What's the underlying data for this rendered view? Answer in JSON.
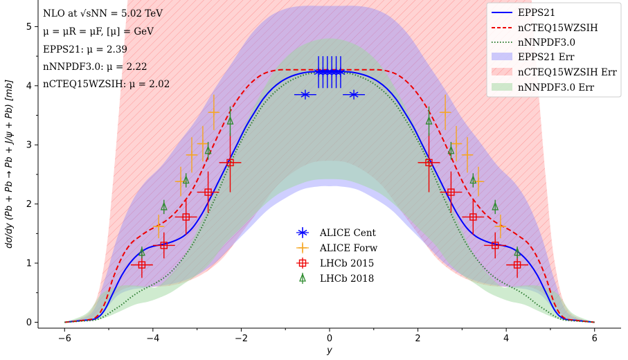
{
  "chart_data": {
    "type": "line",
    "xlabel": "y",
    "ylabel": "dσ/dy (Pb + Pb → Pb + J/ψ + Pb) [mb]",
    "xlim": [
      -6.6,
      6.6
    ],
    "ylim": [
      -0.1,
      5.45
    ],
    "xticks": [
      -6,
      -4,
      -2,
      0,
      2,
      4,
      6
    ],
    "xtick_labels": [
      "−6",
      "−4",
      "−2",
      "0",
      "2",
      "4",
      "6"
    ],
    "yticks": [
      0,
      1,
      2,
      3,
      4,
      5
    ],
    "ytick_labels": [
      "0",
      "1",
      "2",
      "3",
      "4",
      "5"
    ],
    "annotations": [
      "NLO at √sNN = 5.02 TeV",
      "μ = μR = μF, [μ] = GeV",
      "EPPS21: μ = 2.39",
      "nNNPDF3.0: μ = 2.22",
      "nCTEQ15WZSIH: μ = 2.02"
    ],
    "legend_position": "top-right",
    "series": [
      {
        "name": "EPPS21",
        "style": "solid",
        "color": "#0000ff",
        "x": [
          -6.0,
          -5.6,
          -5.3,
          -5.1,
          -4.9,
          -4.7,
          -4.5,
          -4.3,
          -4.1,
          -3.9,
          -3.7,
          -3.5,
          -3.3,
          -3.1,
          -2.9,
          -2.7,
          -2.5,
          -2.3,
          -2.1,
          -1.9,
          -1.7,
          -1.5,
          -1.3,
          -1.1,
          -0.9,
          -0.7,
          -0.5,
          -0.3,
          -0.1,
          0.0
        ],
        "y": [
          0.0,
          0.03,
          0.06,
          0.2,
          0.5,
          0.8,
          1.02,
          1.17,
          1.26,
          1.3,
          1.33,
          1.38,
          1.46,
          1.6,
          1.82,
          2.1,
          2.4,
          2.7,
          3.0,
          3.3,
          3.55,
          3.78,
          3.95,
          4.07,
          4.15,
          4.2,
          4.23,
          4.24,
          4.25,
          4.25
        ]
      },
      {
        "name": "nCTEQ15WZSIH",
        "style": "dashed",
        "color": "#ee0000",
        "x": [
          -6.0,
          -5.6,
          -5.3,
          -5.1,
          -4.9,
          -4.7,
          -4.5,
          -4.3,
          -4.1,
          -3.9,
          -3.7,
          -3.5,
          -3.3,
          -3.1,
          -2.9,
          -2.7,
          -2.5,
          -2.3,
          -2.1,
          -1.9,
          -1.7,
          -1.5,
          -1.3,
          -1.1,
          -0.9,
          -0.7,
          -0.5,
          -0.3,
          -0.1,
          0.0
        ],
        "y": [
          0.0,
          0.03,
          0.08,
          0.3,
          0.75,
          1.1,
          1.33,
          1.45,
          1.55,
          1.63,
          1.72,
          1.85,
          2.03,
          2.25,
          2.55,
          2.88,
          3.2,
          3.5,
          3.75,
          3.95,
          4.1,
          4.2,
          4.25,
          4.27,
          4.27,
          4.27,
          4.27,
          4.27,
          4.27,
          4.27
        ]
      },
      {
        "name": "nNNPDF3.0",
        "style": "dotted",
        "color": "#2e7d32",
        "x": [
          -6.0,
          -5.6,
          -5.3,
          -5.1,
          -4.9,
          -4.7,
          -4.5,
          -4.3,
          -4.1,
          -3.9,
          -3.7,
          -3.5,
          -3.3,
          -3.1,
          -2.9,
          -2.7,
          -2.5,
          -2.3,
          -2.1,
          -1.9,
          -1.7,
          -1.5,
          -1.3,
          -1.1,
          -0.9,
          -0.7,
          -0.5,
          -0.3,
          -0.1,
          0.0
        ],
        "y": [
          0.0,
          0.02,
          0.04,
          0.1,
          0.2,
          0.3,
          0.42,
          0.52,
          0.6,
          0.68,
          0.78,
          0.92,
          1.1,
          1.32,
          1.6,
          1.92,
          2.25,
          2.6,
          2.92,
          3.2,
          3.45,
          3.68,
          3.85,
          3.98,
          4.08,
          4.15,
          4.2,
          4.22,
          4.23,
          4.23
        ]
      }
    ],
    "bands": [
      {
        "name": "EPPS21 Err",
        "color": "#8080ff",
        "x": [
          -6.0,
          -5.4,
          -5.1,
          -4.8,
          -4.5,
          -4.2,
          -3.8,
          -3.4,
          -3.0,
          -2.6,
          -2.2,
          -1.8,
          -1.4,
          -1.0,
          -0.6,
          -0.2,
          0.0
        ],
        "lower": [
          0.0,
          0.05,
          0.2,
          0.45,
          0.55,
          0.58,
          0.62,
          0.68,
          0.8,
          1.0,
          1.3,
          1.6,
          1.9,
          2.1,
          2.25,
          2.3,
          2.3
        ],
        "upper": [
          0.0,
          0.15,
          0.7,
          1.45,
          2.0,
          2.35,
          2.65,
          3.05,
          3.45,
          3.95,
          4.4,
          4.85,
          5.15,
          5.3,
          5.35,
          5.35,
          5.35
        ]
      },
      {
        "name": "nCTEQ15WZSIH Err",
        "color": "#ff8080",
        "x": [
          -6.0,
          -5.4,
          -5.1,
          -4.9,
          -4.7,
          -4.5,
          -4.3,
          -4.0,
          -3.6,
          -3.2,
          -2.8,
          -2.4,
          -2.0,
          -1.6,
          -1.2,
          -0.8,
          -0.4,
          0.0
        ],
        "lower": [
          0.0,
          0.05,
          0.3,
          0.45,
          0.55,
          0.6,
          0.6,
          0.6,
          0.62,
          0.7,
          0.85,
          1.1,
          1.5,
          1.9,
          2.3,
          2.55,
          2.7,
          2.73
        ],
        "upper": [
          0.0,
          0.2,
          1.0,
          2.4,
          4.2,
          6.0,
          6.5,
          6.5,
          6.5,
          6.5,
          6.5,
          6.5,
          6.5,
          6.5,
          6.5,
          6.5,
          6.5,
          6.5
        ]
      },
      {
        "name": "nNNPDF3.0 Err",
        "color": "#a0d8a0",
        "x": [
          -6.0,
          -5.5,
          -5.2,
          -5.0,
          -4.7,
          -4.4,
          -4.1,
          -3.9,
          -3.6,
          -3.3,
          -3.0,
          -2.7,
          -2.4,
          -2.0,
          -1.6,
          -1.2,
          -0.8,
          -0.4,
          0.0
        ],
        "lower": [
          0.0,
          0.02,
          0.05,
          0.1,
          0.2,
          0.3,
          0.35,
          0.4,
          0.5,
          0.65,
          0.8,
          1.0,
          1.3,
          1.6,
          1.9,
          2.15,
          2.3,
          2.4,
          2.42
        ],
        "upper": [
          0.0,
          0.15,
          0.45,
          0.55,
          0.62,
          0.62,
          0.6,
          0.6,
          0.8,
          1.1,
          1.55,
          2.05,
          2.55,
          3.2,
          3.8,
          4.3,
          4.6,
          4.75,
          4.8
        ]
      }
    ],
    "points": [
      {
        "name": "ALICE Cent",
        "color": "#0000ff",
        "marker": "asterisk",
        "data": [
          {
            "x": -0.55,
            "y": 3.85,
            "xerr": 0.25,
            "yerr": 0.0
          },
          {
            "x": -0.25,
            "y": 4.23,
            "xerr": 0.05,
            "yerr": 0.27
          },
          {
            "x": -0.15,
            "y": 4.23,
            "xerr": 0.05,
            "yerr": 0.27
          },
          {
            "x": -0.05,
            "y": 4.23,
            "xerr": 0.05,
            "yerr": 0.27
          },
          {
            "x": 0.05,
            "y": 4.23,
            "xerr": 0.05,
            "yerr": 0.27
          },
          {
            "x": 0.15,
            "y": 4.23,
            "xerr": 0.05,
            "yerr": 0.27
          },
          {
            "x": 0.25,
            "y": 4.23,
            "xerr": 0.05,
            "yerr": 0.27
          },
          {
            "x": 0.55,
            "y": 3.85,
            "xerr": 0.25,
            "yerr": 0.0
          }
        ]
      },
      {
        "name": "ALICE Forw",
        "color": "#f5a623",
        "marker": "plus",
        "data": [
          {
            "x": -3.87,
            "y": 1.62,
            "xerr": 0.13,
            "yerr": 0.2
          },
          {
            "x": -3.37,
            "y": 2.38,
            "xerr": 0.13,
            "yerr": 0.25
          },
          {
            "x": -3.12,
            "y": 2.83,
            "xerr": 0.13,
            "yerr": 0.3
          },
          {
            "x": -2.87,
            "y": 3.02,
            "xerr": 0.13,
            "yerr": 0.3
          },
          {
            "x": -2.62,
            "y": 3.55,
            "xerr": 0.13,
            "yerr": 0.3
          },
          {
            "x": 2.62,
            "y": 3.55,
            "xerr": 0.13,
            "yerr": 0.3
          },
          {
            "x": 2.87,
            "y": 3.02,
            "xerr": 0.13,
            "yerr": 0.3
          },
          {
            "x": 3.12,
            "y": 2.83,
            "xerr": 0.13,
            "yerr": 0.3
          },
          {
            "x": 3.37,
            "y": 2.38,
            "xerr": 0.13,
            "yerr": 0.25
          },
          {
            "x": 3.87,
            "y": 1.62,
            "xerr": 0.13,
            "yerr": 0.2
          }
        ]
      },
      {
        "name": "LHCb 2015",
        "color": "#ee0000",
        "marker": "square",
        "data": [
          {
            "x": -4.25,
            "y": 0.97,
            "xerr": 0.25,
            "yerr": 0.22
          },
          {
            "x": -3.75,
            "y": 1.3,
            "xerr": 0.25,
            "yerr": 0.22
          },
          {
            "x": -3.25,
            "y": 1.78,
            "xerr": 0.25,
            "yerr": 0.3
          },
          {
            "x": -2.75,
            "y": 2.2,
            "xerr": 0.25,
            "yerr": 0.35
          },
          {
            "x": -2.25,
            "y": 2.7,
            "xerr": 0.25,
            "yerr": 0.5
          },
          {
            "x": 2.25,
            "y": 2.7,
            "xerr": 0.25,
            "yerr": 0.5
          },
          {
            "x": 2.75,
            "y": 2.2,
            "xerr": 0.25,
            "yerr": 0.35
          },
          {
            "x": 3.25,
            "y": 1.78,
            "xerr": 0.25,
            "yerr": 0.3
          },
          {
            "x": 3.75,
            "y": 1.3,
            "xerr": 0.25,
            "yerr": 0.22
          },
          {
            "x": 4.25,
            "y": 0.97,
            "xerr": 0.25,
            "yerr": 0.22
          }
        ]
      },
      {
        "name": "LHCb 2018",
        "color": "#2e8b2e",
        "marker": "triangle",
        "data": [
          {
            "x": -4.25,
            "y": 1.18,
            "xerr": 0.0,
            "yerr": 0.1
          },
          {
            "x": -3.75,
            "y": 1.95,
            "xerr": 0.0,
            "yerr": 0.12
          },
          {
            "x": -3.25,
            "y": 2.4,
            "xerr": 0.0,
            "yerr": 0.12
          },
          {
            "x": -2.75,
            "y": 2.9,
            "xerr": 0.0,
            "yerr": 0.15
          },
          {
            "x": -2.25,
            "y": 3.4,
            "xerr": 0.0,
            "yerr": 0.25
          },
          {
            "x": 2.25,
            "y": 3.4,
            "xerr": 0.0,
            "yerr": 0.25
          },
          {
            "x": 2.75,
            "y": 2.9,
            "xerr": 0.0,
            "yerr": 0.15
          },
          {
            "x": 3.25,
            "y": 2.4,
            "xerr": 0.0,
            "yerr": 0.12
          },
          {
            "x": 3.75,
            "y": 1.95,
            "xerr": 0.0,
            "yerr": 0.12
          },
          {
            "x": 4.25,
            "y": 1.18,
            "xerr": 0.0,
            "yerr": 0.1
          }
        ]
      }
    ]
  }
}
